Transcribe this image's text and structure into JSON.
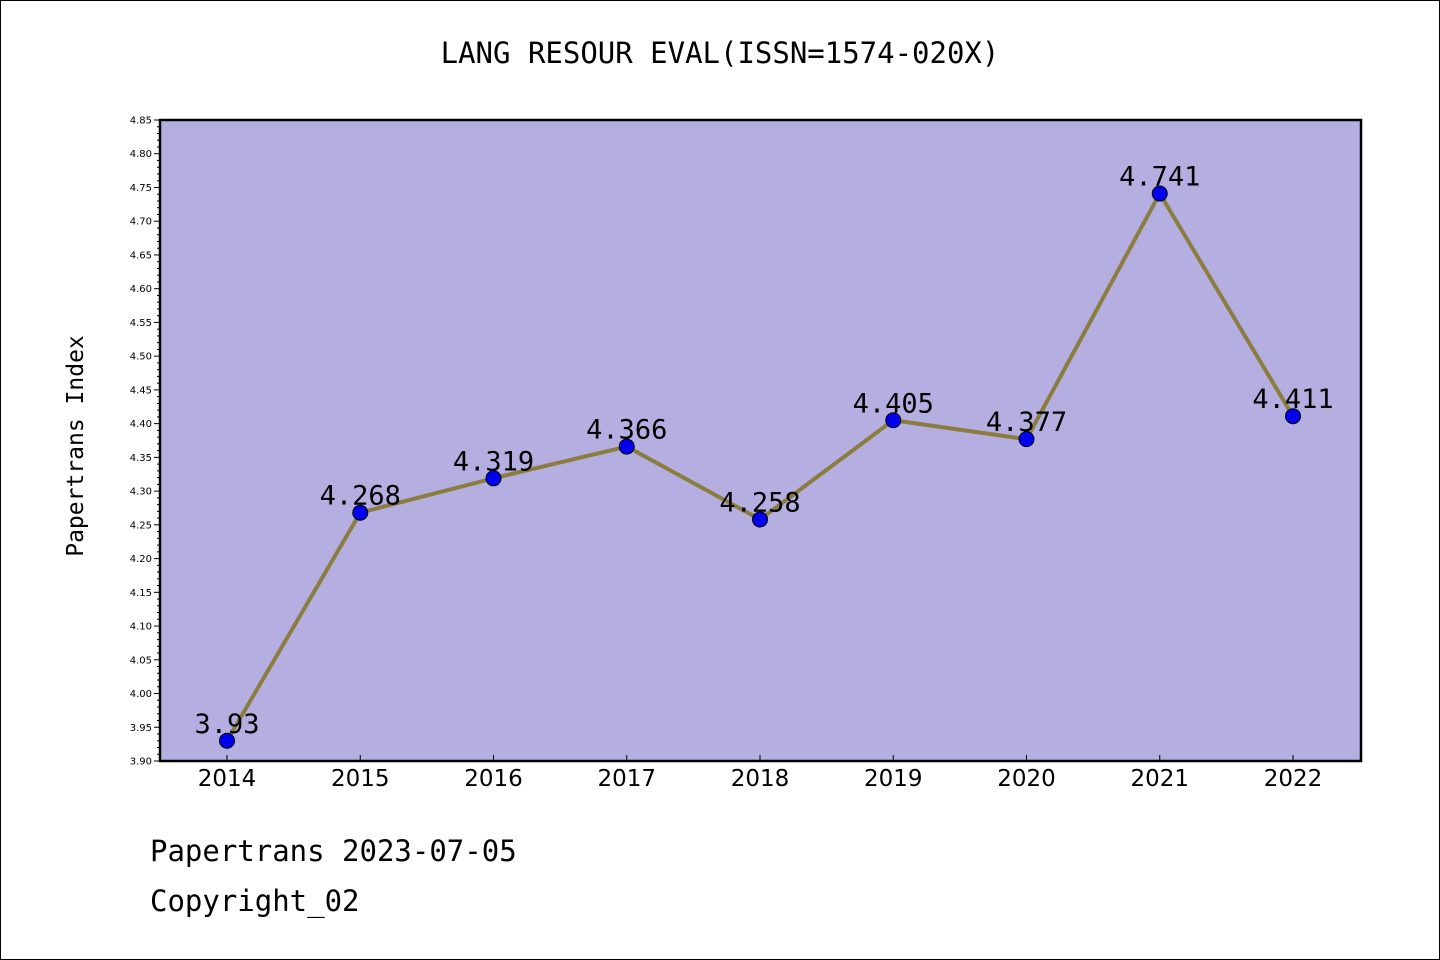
{
  "title": "LANG RESOUR EVAL(ISSN=1574-020X)",
  "footer": {
    "line1": "Papertrans 2023-07-05",
    "line2": "Copyright_02"
  },
  "colors": {
    "plot_background": "#b5afe1",
    "line": "#8b7d3f",
    "marker": "#0000ee"
  },
  "chart_data": {
    "type": "line",
    "title": "LANG RESOUR EVAL(ISSN=1574-020X)",
    "xlabel": "",
    "ylabel": "Papertrans Index",
    "x": [
      "2014",
      "2015",
      "2016",
      "2017",
      "2018",
      "2019",
      "2020",
      "2021",
      "2022"
    ],
    "values": [
      3.93,
      4.268,
      4.319,
      4.366,
      4.258,
      4.405,
      4.377,
      4.741,
      4.411
    ],
    "data_labels": [
      "3.93",
      "4.268",
      "4.319",
      "4.366",
      "4.258",
      "4.405",
      "4.377",
      "4.741",
      "4.411"
    ],
    "ylim": [
      3.9,
      4.85
    ],
    "yticks": [
      "3.90",
      "3.95",
      "4.00",
      "4.05",
      "4.10",
      "4.15",
      "4.20",
      "4.25",
      "4.30",
      "4.35",
      "4.40",
      "4.45",
      "4.50",
      "4.55",
      "4.60",
      "4.65",
      "4.70",
      "4.75",
      "4.80",
      "4.85"
    ],
    "grid": false,
    "legend": "none"
  }
}
